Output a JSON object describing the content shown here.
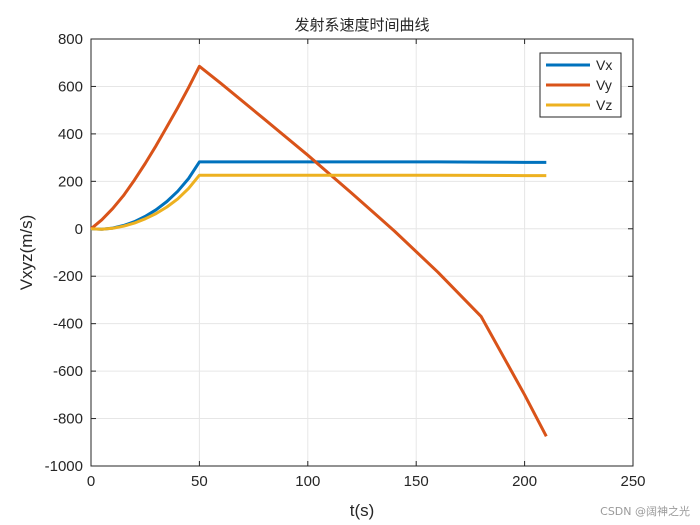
{
  "chart_data": {
    "type": "line",
    "title": "发射系速度时间曲线",
    "xlabel": "t(s)",
    "ylabel": "Vxyz(m/s)",
    "xlim": [
      0,
      250
    ],
    "ylim": [
      -1000,
      800
    ],
    "xticks": [
      0,
      50,
      100,
      150,
      200,
      250
    ],
    "yticks": [
      -1000,
      -800,
      -600,
      -400,
      -200,
      0,
      200,
      400,
      600,
      800
    ],
    "grid": true,
    "legend_position": "top-right",
    "series": [
      {
        "name": "Vx",
        "color": "#0072BD",
        "x": [
          0,
          5,
          10,
          15,
          20,
          25,
          30,
          35,
          40,
          45,
          50,
          60,
          80,
          100,
          120,
          140,
          160,
          180,
          200,
          210
        ],
        "y": [
          0,
          -2,
          3,
          14,
          30,
          52,
          80,
          115,
          158,
          212,
          282,
          282,
          282,
          282,
          282,
          282,
          282,
          281,
          280,
          280
        ]
      },
      {
        "name": "Vy",
        "color": "#D95319",
        "x": [
          0,
          5,
          10,
          15,
          20,
          25,
          30,
          35,
          40,
          45,
          50,
          60,
          80,
          100,
          120,
          140,
          160,
          180,
          200,
          210
        ],
        "y": [
          0,
          38,
          85,
          140,
          205,
          275,
          350,
          430,
          510,
          595,
          685,
          612,
          462,
          310,
          152,
          -10,
          -183,
          -370,
          -700,
          -875
        ]
      },
      {
        "name": "Vz",
        "color": "#EDB120",
        "x": [
          0,
          5,
          10,
          15,
          20,
          25,
          30,
          35,
          40,
          45,
          50,
          60,
          80,
          100,
          120,
          140,
          160,
          180,
          200,
          210
        ],
        "y": [
          0,
          -2,
          2,
          11,
          24,
          42,
          64,
          92,
          126,
          170,
          226,
          226,
          226,
          226,
          226,
          226,
          226,
          225,
          224,
          224
        ]
      }
    ]
  },
  "watermark": "CSDN @阔神之光"
}
